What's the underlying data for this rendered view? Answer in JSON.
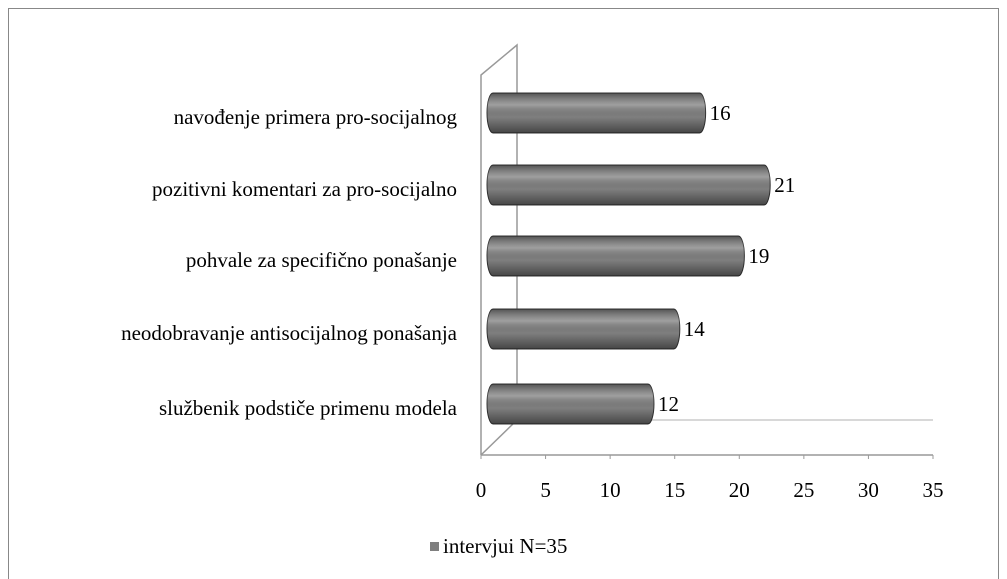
{
  "chart_data": {
    "type": "bar",
    "orientation": "horizontal",
    "categories": [
      "navođenje primera pro-socijalnog",
      "pozitivni komentari za pro-socijalno",
      "pohvale za specifično ponašanje",
      "neodobravanje antisocijalnog ponašanja",
      "službenik podstiče primenu modela"
    ],
    "series": [
      {
        "name": "intervjui N=35",
        "color": "#7f7f7f",
        "values": [
          16,
          21,
          19,
          14,
          12
        ]
      }
    ],
    "xlim": [
      0,
      35
    ],
    "xticks": [
      0,
      5,
      10,
      15,
      20,
      25,
      30,
      35
    ],
    "legend": "bottom"
  }
}
